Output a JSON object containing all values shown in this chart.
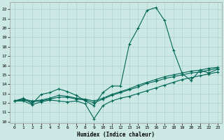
{
  "xlabel": "Humidex (Indice chaleur)",
  "bg_color": "#cce8e4",
  "grid_color": "#aad4cc",
  "line_color": "#006655",
  "xlim": [
    -0.5,
    23.5
  ],
  "ylim": [
    9.8,
    22.8
  ],
  "yticks": [
    10,
    11,
    12,
    13,
    14,
    15,
    16,
    17,
    18,
    19,
    20,
    21,
    22
  ],
  "xticks": [
    0,
    1,
    2,
    3,
    4,
    5,
    6,
    7,
    8,
    9,
    10,
    11,
    12,
    13,
    14,
    15,
    16,
    17,
    18,
    19,
    20,
    21,
    22,
    23
  ],
  "line_peak_x": [
    0,
    1,
    2,
    3,
    4,
    5,
    6,
    7,
    8,
    9,
    10,
    11,
    12,
    13,
    14,
    15,
    16,
    17,
    18,
    19,
    20,
    21,
    22,
    23
  ],
  "line_peak_y": [
    12.2,
    12.5,
    11.9,
    12.9,
    13.1,
    13.5,
    13.2,
    12.8,
    12.2,
    11.7,
    13.1,
    13.8,
    13.8,
    18.3,
    20.0,
    21.9,
    22.2,
    20.8,
    17.6,
    15.1,
    14.4,
    15.5,
    15.2,
    15.6
  ],
  "line_dip_x": [
    0,
    1,
    2,
    3,
    4,
    5,
    6,
    7,
    8,
    9,
    10,
    11,
    12,
    13,
    14,
    15,
    16,
    17,
    18,
    19,
    20,
    21,
    22,
    23
  ],
  "line_dip_y": [
    12.2,
    12.2,
    11.8,
    12.1,
    12.3,
    12.2,
    12.1,
    12.2,
    11.9,
    10.3,
    11.7,
    12.2,
    12.5,
    12.7,
    13.0,
    13.3,
    13.6,
    13.9,
    14.2,
    14.5,
    14.7,
    14.9,
    15.1,
    15.3
  ],
  "line_flat1_x": [
    0,
    1,
    2,
    3,
    4,
    5,
    6,
    7,
    8,
    9,
    10,
    11,
    12,
    13,
    14,
    15,
    16,
    17,
    18,
    19,
    20,
    21,
    22,
    23
  ],
  "line_flat1_y": [
    12.2,
    12.4,
    12.2,
    12.3,
    12.5,
    12.8,
    12.7,
    12.5,
    12.4,
    12.2,
    12.5,
    12.9,
    13.2,
    13.5,
    13.9,
    14.2,
    14.5,
    14.8,
    15.0,
    15.2,
    15.4,
    15.5,
    15.7,
    15.8
  ],
  "line_flat2_x": [
    0,
    1,
    2,
    3,
    4,
    5,
    6,
    7,
    8,
    9,
    10,
    11,
    12,
    13,
    14,
    15,
    16,
    17,
    18,
    19,
    20,
    21,
    22,
    23
  ],
  "line_flat2_y": [
    12.2,
    12.3,
    12.1,
    12.2,
    12.4,
    12.6,
    12.6,
    12.4,
    12.3,
    12.0,
    12.4,
    12.8,
    13.1,
    13.4,
    13.7,
    14.1,
    14.3,
    14.6,
    14.8,
    15.0,
    15.2,
    15.3,
    15.5,
    15.7
  ]
}
